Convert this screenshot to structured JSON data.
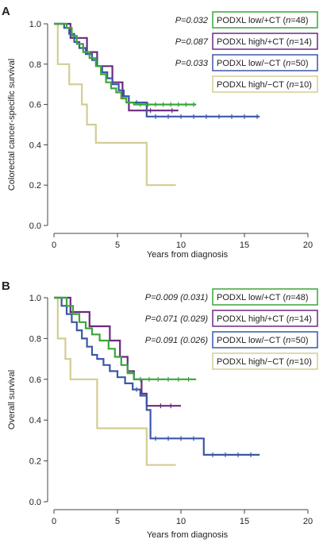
{
  "chart_data": [
    {
      "type": "line",
      "panel_label": "A",
      "xlabel": "Years from diagnosis",
      "ylabel": "Colorectal cancer-specific survival",
      "xlim": [
        0,
        20
      ],
      "ylim": [
        0,
        1.0
      ],
      "x_ticks": [
        "0",
        "5",
        "10",
        "15",
        "20"
      ],
      "y_ticks": [
        "0.0",
        "0.2",
        "0.4",
        "0.6",
        "0.8",
        "1.0"
      ],
      "grid": false,
      "legend_placement": "top-right",
      "series": [
        {
          "name": "PODXL low/+CT (n=48)",
          "pvalue": "P=0.032",
          "color": "#3aa63a",
          "steps": [
            [
              0,
              1.0
            ],
            [
              1.0,
              0.98
            ],
            [
              1.4,
              0.94
            ],
            [
              1.8,
              0.9
            ],
            [
              2.3,
              0.86
            ],
            [
              2.8,
              0.83
            ],
            [
              3.3,
              0.79
            ],
            [
              3.7,
              0.75
            ],
            [
              4.1,
              0.71
            ],
            [
              4.5,
              0.68
            ],
            [
              4.9,
              0.66
            ],
            [
              5.3,
              0.63
            ],
            [
              5.7,
              0.61
            ],
            [
              6.3,
              0.6
            ],
            [
              11.2,
              0.6
            ]
          ],
          "censor_x": [
            6.8,
            7.4,
            8.0,
            8.6,
            9.2,
            9.8,
            10.4,
            11.0
          ]
        },
        {
          "name": "PODXL high/+CT (n=14)",
          "pvalue": "P=0.087",
          "color": "#6b2a80",
          "steps": [
            [
              0,
              1.0
            ],
            [
              1.3,
              0.93
            ],
            [
              2.6,
              0.86
            ],
            [
              3.4,
              0.79
            ],
            [
              4.6,
              0.71
            ],
            [
              5.4,
              0.64
            ],
            [
              5.9,
              0.57
            ],
            [
              9.8,
              0.57
            ]
          ],
          "censor_x": [
            7.6,
            9.3
          ]
        },
        {
          "name": "PODXL low/−CT (n=50)",
          "pvalue": "P=0.033",
          "color": "#3b57a7",
          "steps": [
            [
              0,
              1.0
            ],
            [
              0.8,
              0.98
            ],
            [
              1.2,
              0.95
            ],
            [
              1.6,
              0.91
            ],
            [
              2.0,
              0.88
            ],
            [
              2.5,
              0.85
            ],
            [
              3.0,
              0.82
            ],
            [
              3.4,
              0.79
            ],
            [
              3.8,
              0.76
            ],
            [
              4.2,
              0.73
            ],
            [
              4.6,
              0.7
            ],
            [
              5.1,
              0.67
            ],
            [
              5.5,
              0.64
            ],
            [
              5.9,
              0.61
            ],
            [
              7.3,
              0.54
            ],
            [
              16.2,
              0.54
            ]
          ],
          "censor_x": [
            6.5,
            8.0,
            9.0,
            10.0,
            11.0,
            12.0,
            13.0,
            14.0,
            15.0,
            16.0
          ]
        },
        {
          "name": "PODXL high/−CT (n=10)",
          "pvalue": "",
          "color": "#d2cd94",
          "steps": [
            [
              0,
              1.0
            ],
            [
              0.3,
              0.8
            ],
            [
              1.2,
              0.7
            ],
            [
              2.2,
              0.6
            ],
            [
              2.6,
              0.5
            ],
            [
              3.3,
              0.41
            ],
            [
              7.3,
              0.2
            ],
            [
              9.6,
              0.2
            ]
          ],
          "censor_x": []
        }
      ]
    },
    {
      "type": "line",
      "panel_label": "B",
      "xlabel": "Years from diagnosis",
      "ylabel": "Overall survival",
      "xlim": [
        0,
        20
      ],
      "ylim": [
        0,
        1.0
      ],
      "x_ticks": [
        "0",
        "5",
        "10",
        "15",
        "20"
      ],
      "y_ticks": [
        "0.0",
        "0.2",
        "0.4",
        "0.6",
        "0.8",
        "1.0"
      ],
      "grid": false,
      "legend_placement": "top-right",
      "series": [
        {
          "name": "PODXL low/+CT (n=48)",
          "pvalue": "P=0.009 (0.031)",
          "color": "#3aa63a",
          "steps": [
            [
              0,
              1.0
            ],
            [
              1.0,
              0.96
            ],
            [
              1.5,
              0.92
            ],
            [
              2.0,
              0.88
            ],
            [
              2.5,
              0.85
            ],
            [
              3.0,
              0.82
            ],
            [
              3.6,
              0.79
            ],
            [
              4.3,
              0.75
            ],
            [
              4.8,
              0.71
            ],
            [
              5.3,
              0.67
            ],
            [
              5.8,
              0.63
            ],
            [
              6.3,
              0.6
            ],
            [
              11.2,
              0.6
            ]
          ],
          "censor_x": [
            6.8,
            7.5,
            8.2,
            9.0,
            9.8,
            10.6
          ]
        },
        {
          "name": "PODXL high/+CT (n=14)",
          "pvalue": "P=0.071 (0.029)",
          "color": "#6b2a80",
          "steps": [
            [
              0,
              1.0
            ],
            [
              1.3,
              0.93
            ],
            [
              2.8,
              0.86
            ],
            [
              4.4,
              0.79
            ],
            [
              5.2,
              0.71
            ],
            [
              5.8,
              0.64
            ],
            [
              6.3,
              0.6
            ],
            [
              6.9,
              0.53
            ],
            [
              7.3,
              0.47
            ],
            [
              10.0,
              0.47
            ]
          ],
          "censor_x": [
            8.4,
            9.2
          ]
        },
        {
          "name": "PODXL low/−CT (n=50)",
          "pvalue": "P=0.091 (0.026)",
          "color": "#3b57a7",
          "steps": [
            [
              0,
              1.0
            ],
            [
              0.6,
              0.96
            ],
            [
              1.0,
              0.92
            ],
            [
              1.4,
              0.88
            ],
            [
              1.8,
              0.84
            ],
            [
              2.2,
              0.8
            ],
            [
              2.6,
              0.76
            ],
            [
              3.0,
              0.72
            ],
            [
              3.4,
              0.7
            ],
            [
              3.9,
              0.67
            ],
            [
              4.4,
              0.64
            ],
            [
              5.0,
              0.61
            ],
            [
              5.6,
              0.58
            ],
            [
              6.2,
              0.55
            ],
            [
              6.8,
              0.52
            ],
            [
              7.3,
              0.45
            ],
            [
              7.6,
              0.31
            ],
            [
              11.8,
              0.23
            ],
            [
              16.2,
              0.23
            ]
          ],
          "censor_x": [
            6.5,
            8.0,
            9.0,
            10.0,
            11.0,
            12.5,
            13.5,
            14.5,
            15.5
          ]
        },
        {
          "name": "PODXL high/−CT (n=10)",
          "pvalue": "",
          "color": "#d2cd94",
          "steps": [
            [
              0,
              1.0
            ],
            [
              0.3,
              0.8
            ],
            [
              0.9,
              0.7
            ],
            [
              1.3,
              0.6
            ],
            [
              3.4,
              0.36
            ],
            [
              7.3,
              0.18
            ],
            [
              9.6,
              0.18
            ]
          ],
          "censor_x": []
        }
      ]
    }
  ]
}
